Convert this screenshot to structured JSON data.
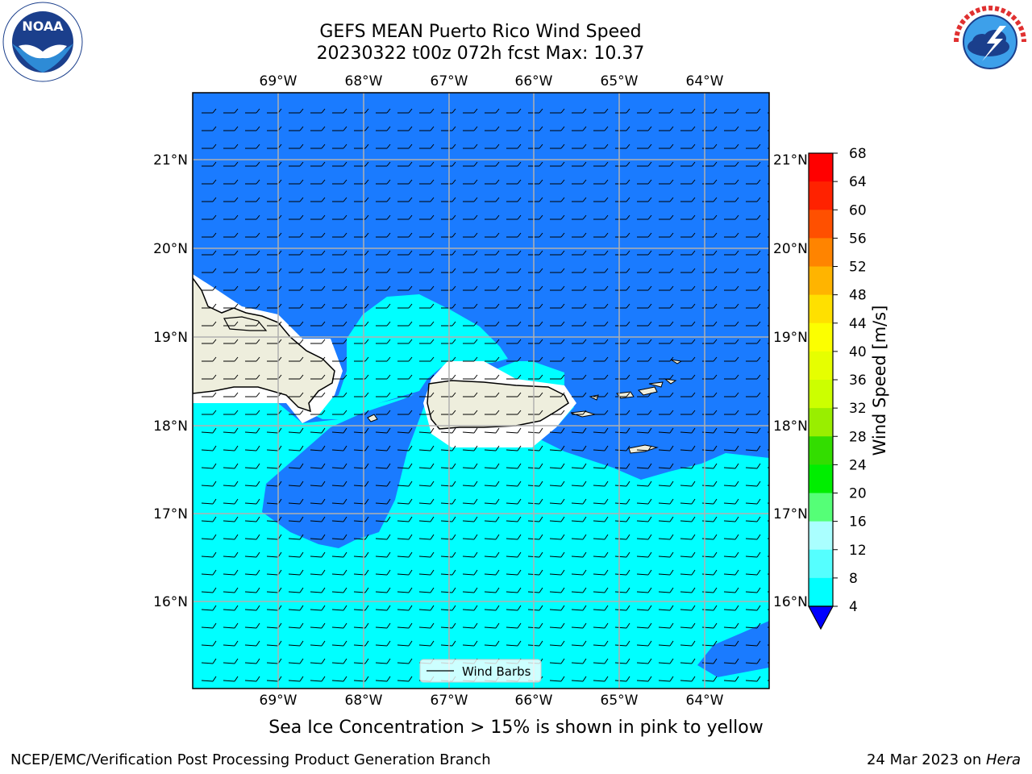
{
  "header": {
    "title_line1": "GEFS MEAN Puerto Rico Wind Speed",
    "title_line2": "20230322 t00z 072h fcst   Max: 10.37"
  },
  "logos": {
    "left": {
      "icon": "noaa-logo",
      "text": "NOAA",
      "ring_text": "NATIONAL OCEANIC AND ATMOSPHERIC ADMINISTRATION · U.S. DEPARTMENT OF COMMERCE"
    },
    "right": {
      "icon": "nws-logo",
      "ring_text": "NATIONAL WEATHER SERVICE"
    }
  },
  "map": {
    "lon_labels": [
      "69°W",
      "68°W",
      "67°W",
      "66°W",
      "65°W",
      "64°W"
    ],
    "lat_labels": [
      "21°N",
      "20°N",
      "19°N",
      "18°N",
      "17°N",
      "16°N"
    ],
    "legend_label": "Wind Barbs",
    "colors": {
      "ocean_4_8": "#1a7bff",
      "ocean_8_12": "#00ffff",
      "land": "#eeeedd",
      "gridline": "#b0b0b0"
    }
  },
  "colorbar": {
    "label": "Wind Speed [m/s]",
    "ticks": [
      "68",
      "64",
      "60",
      "56",
      "52",
      "48",
      "44",
      "40",
      "36",
      "32",
      "28",
      "24",
      "20",
      "16",
      "12",
      "8",
      "4"
    ],
    "colors": [
      "#ff0000",
      "#ff2200",
      "#ff5000",
      "#ff8400",
      "#ffb400",
      "#ffe000",
      "#fcff00",
      "#e6ff00",
      "#ccff00",
      "#99ee00",
      "#33dd00",
      "#00ee00",
      "#55ff77",
      "#aaffff",
      "#55ffff",
      "#00ffff",
      "#1a7bff"
    ],
    "extend_color": "#0000ff"
  },
  "captions": {
    "ice": "Sea Ice Concentration > 15% is shown in pink to yellow"
  },
  "footer": {
    "left": "NCEP/EMC/Verification Post Processing Product Generation Branch",
    "date": "24 Mar 2023 on ",
    "machine": "Hera"
  }
}
